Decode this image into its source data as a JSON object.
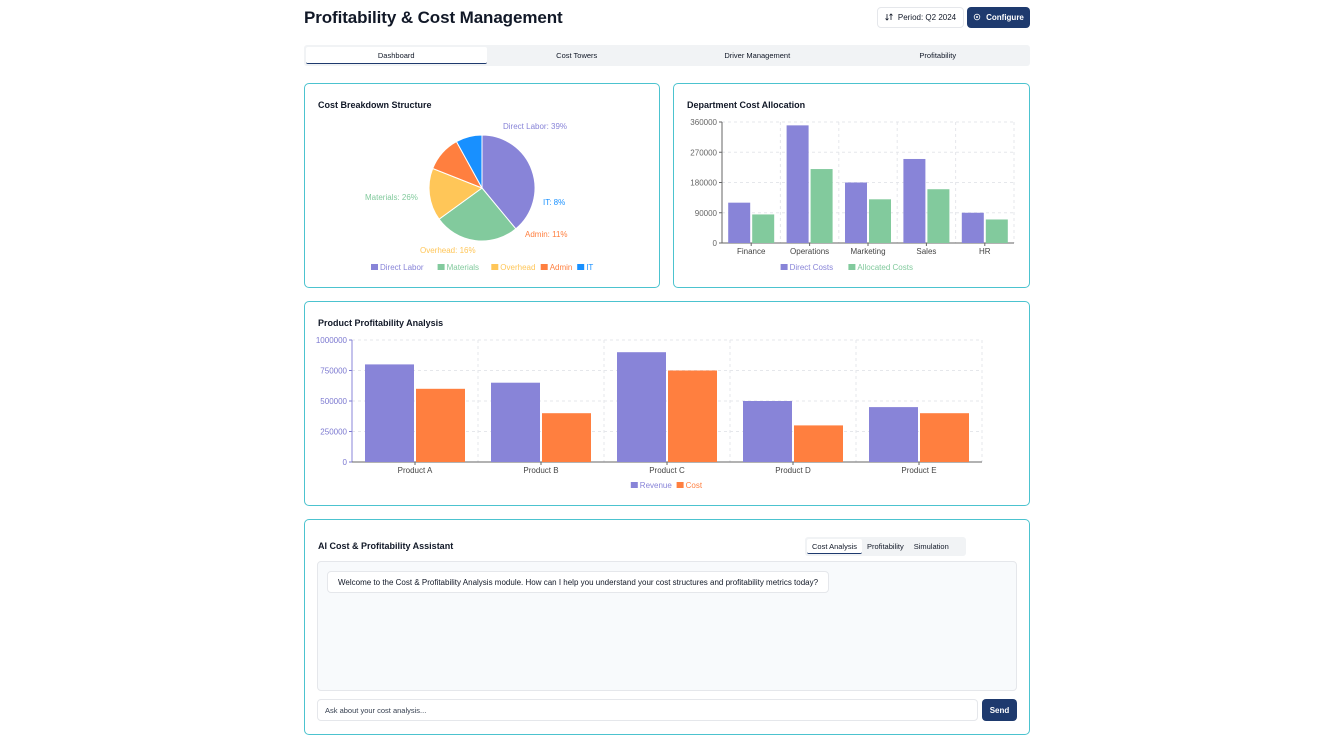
{
  "header": {
    "title": "Profitability & Cost Management",
    "period_label": "Period: Q2 2024",
    "configure_label": "Configure"
  },
  "tabs": [
    {
      "label": "Dashboard",
      "active": true
    },
    {
      "label": "Cost Towers",
      "active": false
    },
    {
      "label": "Driver Management",
      "active": false
    },
    {
      "label": "Profitability",
      "active": false
    }
  ],
  "colors": {
    "accent": "#1e3a6e",
    "card_border": "#4cc3cf",
    "purple": "#8884d8",
    "green": "#82ca9d",
    "yellow": "#ffc658",
    "orange": "#ff7f3f",
    "blue": "#1890ff"
  },
  "pie": {
    "title": "Cost Breakdown Structure",
    "chart_data": {
      "type": "pie",
      "slices": [
        {
          "name": "Direct Labor",
          "value": 39,
          "label": "Direct Labor: 39%",
          "color": "#8884d8"
        },
        {
          "name": "Materials",
          "value": 26,
          "label": "Materials: 26%",
          "color": "#82ca9d"
        },
        {
          "name": "Overhead",
          "value": 16,
          "label": "Overhead: 16%",
          "color": "#ffc658"
        },
        {
          "name": "Admin",
          "value": 11,
          "label": "Admin: 11%",
          "color": "#ff7f3f"
        },
        {
          "name": "IT",
          "value": 8,
          "label": "IT: 8%",
          "color": "#1890ff"
        }
      ],
      "legend": "bottom"
    }
  },
  "dept": {
    "title": "Department Cost Allocation",
    "chart_data": {
      "type": "bar",
      "categories": [
        "Finance",
        "Operations",
        "Marketing",
        "Sales",
        "HR"
      ],
      "series": [
        {
          "name": "Direct Costs",
          "values": [
            120000,
            350000,
            180000,
            250000,
            90000
          ],
          "color": "#8884d8"
        },
        {
          "name": "Allocated Costs",
          "values": [
            85000,
            220000,
            130000,
            160000,
            70000
          ],
          "color": "#82ca9d"
        }
      ],
      "yticks": [
        0,
        90000,
        180000,
        270000,
        360000
      ],
      "ylim": [
        0,
        360000
      ],
      "grid": true,
      "legend": "bottom"
    }
  },
  "product": {
    "title": "Product Profitability Analysis",
    "chart_data": {
      "type": "bar",
      "categories": [
        "Product A",
        "Product B",
        "Product C",
        "Product D",
        "Product E"
      ],
      "series": [
        {
          "name": "Revenue",
          "values": [
            800000,
            650000,
            900000,
            500000,
            450000
          ],
          "color": "#8884d8"
        },
        {
          "name": "Cost",
          "values": [
            600000,
            400000,
            750000,
            300000,
            400000
          ],
          "color": "#ff7f3f"
        }
      ],
      "yticks": [
        0,
        250000,
        500000,
        750000,
        1000000
      ],
      "ylim": [
        0,
        1000000
      ],
      "grid": true,
      "legend": "bottom"
    }
  },
  "assistant": {
    "title": "AI Cost & Profitability Assistant",
    "tabs": [
      {
        "label": "Cost Analysis",
        "active": true
      },
      {
        "label": "Profitability",
        "active": false
      },
      {
        "label": "Simulation",
        "active": false
      }
    ],
    "message": "Welcome to the Cost & Profitability Analysis module. How can I help you understand your cost structures and profitability metrics today?",
    "input_placeholder": "Ask about your cost analysis...",
    "send_label": "Send"
  }
}
